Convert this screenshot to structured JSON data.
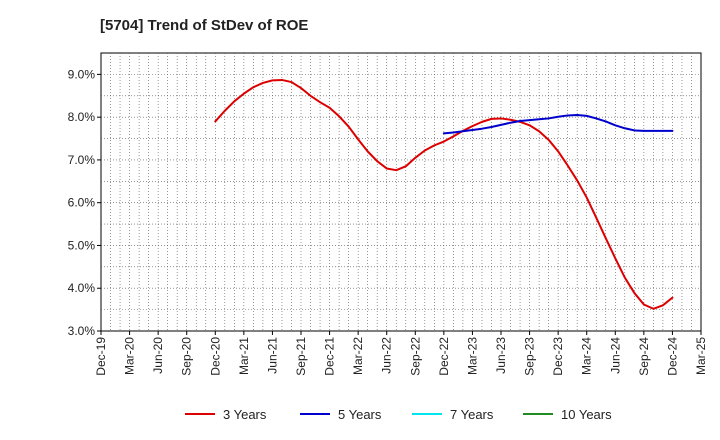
{
  "chart_data": {
    "type": "line",
    "title": "[5704]  Trend of StDev of ROE",
    "xlabel": "",
    "ylabel": "",
    "x_ticks": [
      "Dec-19",
      "Mar-20",
      "Jun-20",
      "Sep-20",
      "Dec-20",
      "Mar-21",
      "Jun-21",
      "Sep-21",
      "Dec-21",
      "Mar-22",
      "Jun-22",
      "Sep-22",
      "Dec-22",
      "Mar-23",
      "Jun-23",
      "Sep-23",
      "Dec-23",
      "Mar-24",
      "Jun-24",
      "Sep-24",
      "Dec-24",
      "Mar-25"
    ],
    "y_ticks": [
      3.0,
      4.0,
      5.0,
      6.0,
      7.0,
      8.0,
      9.0
    ],
    "y_tick_labels": [
      "3.0%",
      "4.0%",
      "5.0%",
      "6.0%",
      "7.0%",
      "8.0%",
      "9.0%"
    ],
    "ylim": [
      3.0,
      9.5
    ],
    "grid": true,
    "legend_position": "bottom",
    "series": [
      {
        "name": "3 Years",
        "color": "#dd0000",
        "x": [
          "Dec-20",
          "Jan-21",
          "Feb-21",
          "Mar-21",
          "Apr-21",
          "May-21",
          "Jun-21",
          "Jul-21",
          "Aug-21",
          "Sep-21",
          "Oct-21",
          "Nov-21",
          "Dec-21",
          "Jan-22",
          "Feb-22",
          "Mar-22",
          "Apr-22",
          "May-22",
          "Jun-22",
          "Jul-22",
          "Aug-22",
          "Sep-22",
          "Oct-22",
          "Nov-22",
          "Dec-22",
          "Jan-23",
          "Feb-23",
          "Mar-23",
          "Apr-23",
          "May-23",
          "Jun-23",
          "Jul-23",
          "Aug-23",
          "Sep-23",
          "Oct-23",
          "Nov-23",
          "Dec-23",
          "Jan-24",
          "Feb-24",
          "Mar-24",
          "Apr-24",
          "May-24",
          "Jun-24",
          "Jul-24",
          "Aug-24",
          "Sep-24",
          "Oct-24",
          "Nov-24",
          "Dec-24"
        ],
        "values": [
          7.9,
          8.15,
          8.37,
          8.55,
          8.7,
          8.8,
          8.86,
          8.87,
          8.82,
          8.68,
          8.5,
          8.35,
          8.22,
          8.02,
          7.78,
          7.48,
          7.2,
          6.97,
          6.8,
          6.76,
          6.85,
          7.05,
          7.22,
          7.34,
          7.43,
          7.55,
          7.68,
          7.79,
          7.89,
          7.96,
          7.97,
          7.94,
          7.89,
          7.81,
          7.67,
          7.47,
          7.2,
          6.87,
          6.52,
          6.12,
          5.65,
          5.17,
          4.7,
          4.25,
          3.89,
          3.62,
          3.52,
          3.6,
          3.78
        ]
      },
      {
        "name": "5 Years",
        "color": "#0000cc",
        "x": [
          "Dec-22",
          "Jan-23",
          "Feb-23",
          "Mar-23",
          "Apr-23",
          "May-23",
          "Jun-23",
          "Jul-23",
          "Aug-23",
          "Sep-23",
          "Oct-23",
          "Nov-23",
          "Dec-23",
          "Jan-24",
          "Feb-24",
          "Mar-24",
          "Apr-24",
          "May-24",
          "Jun-24",
          "Jul-24",
          "Aug-24",
          "Sep-24",
          "Oct-24",
          "Nov-24",
          "Dec-24"
        ],
        "values": [
          7.62,
          7.64,
          7.67,
          7.7,
          7.73,
          7.77,
          7.82,
          7.87,
          7.91,
          7.93,
          7.95,
          7.97,
          8.01,
          8.04,
          8.05,
          8.03,
          7.97,
          7.9,
          7.81,
          7.74,
          7.69,
          7.68,
          7.68,
          7.68,
          7.68
        ]
      },
      {
        "name": "7 Years",
        "color": "#00e5ee",
        "x": [],
        "values": []
      },
      {
        "name": "10 Years",
        "color": "#228b22",
        "x": [],
        "values": []
      }
    ]
  }
}
